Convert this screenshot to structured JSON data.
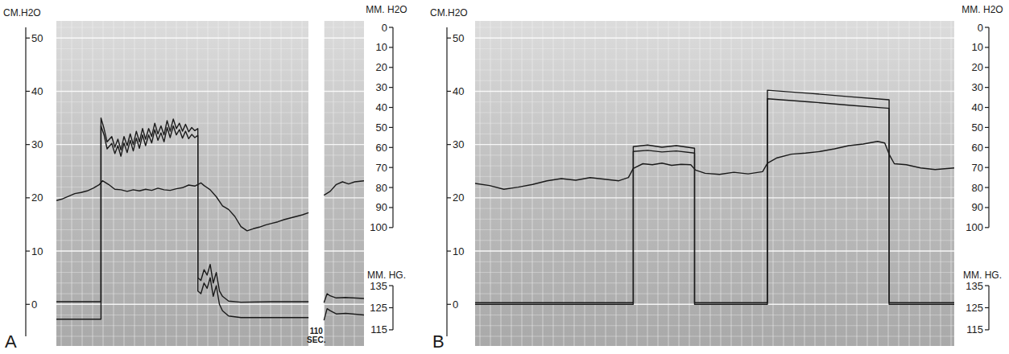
{
  "chart_data": [
    {
      "type": "line",
      "panel": "A",
      "y_label": "CM.H2O",
      "y2_label": "MM. H2O",
      "y3_label": "MM. HG.",
      "xlim": [
        0,
        100
      ],
      "ylim": [
        -6,
        52
      ],
      "yticks": [
        0,
        10,
        20,
        30,
        40,
        50
      ],
      "y2lim": [
        100,
        0
      ],
      "y2ticks": [
        0,
        10,
        20,
        30,
        40,
        50,
        60,
        70,
        80,
        90,
        100
      ],
      "y3lim": [
        115,
        135
      ],
      "y3ticks": [
        115,
        125,
        135
      ],
      "grid": true,
      "tick_labels": "y",
      "color": "#1a1a1a",
      "annotations": [
        {
          "text": "110 SEC.",
          "x": 84.5
        }
      ],
      "series": [
        {
          "x": [
            0,
            2,
            4,
            6,
            8,
            10,
            12,
            14,
            15,
            17,
            19,
            21,
            23,
            25,
            27,
            29,
            31,
            33,
            35,
            37,
            39,
            41,
            43,
            45,
            47,
            48,
            50,
            52,
            54,
            56,
            58,
            60,
            62,
            64,
            66,
            68,
            70,
            72,
            74,
            76,
            78,
            80,
            82,
            84.5,
            87,
            89,
            91,
            93,
            95,
            97,
            100
          ],
          "values": [
            19.5,
            19.8,
            20.3,
            20.8,
            21,
            21.3,
            21.8,
            22.5,
            23.2,
            22.5,
            21.6,
            21.5,
            21.2,
            21.5,
            21.3,
            21.6,
            21.4,
            21.8,
            21.5,
            21.4,
            21.7,
            21.9,
            22.4,
            22.2,
            22.8,
            22.3,
            21.5,
            20.2,
            18.5,
            17.8,
            16.5,
            14.6,
            13.8,
            14.2,
            14.5,
            14.9,
            15.2,
            15.5,
            15.9,
            16.2,
            16.5,
            16.8,
            17.2,
            null,
            20.5,
            21.2,
            22.5,
            23,
            22.6,
            23,
            23.2
          ]
        },
        {
          "x": [
            0,
            14.5,
            14.5,
            15.5,
            16.5,
            18,
            19,
            20,
            21,
            22,
            23,
            24,
            25,
            26,
            27,
            28,
            29,
            30,
            31,
            32,
            33,
            34,
            35,
            36,
            37,
            38,
            39,
            40,
            41,
            42,
            43,
            44,
            45,
            46,
            46,
            47,
            48,
            49,
            50,
            51,
            52,
            53,
            54,
            56,
            60,
            70,
            82,
            84.5,
            87,
            88,
            89,
            91,
            94,
            100
          ],
          "values": [
            0.5,
            0.5,
            35,
            33,
            30.5,
            31.5,
            29.5,
            31,
            29,
            31.5,
            29.8,
            32,
            30,
            32.5,
            30.5,
            33,
            31,
            33,
            31.5,
            34,
            32,
            33.5,
            31.8,
            34.5,
            32.5,
            34.8,
            33,
            34,
            32.5,
            33.8,
            32.4,
            33.2,
            32.6,
            33,
            5,
            4.5,
            6.5,
            5.5,
            7.5,
            4,
            6,
            2.5,
            1.5,
            0.6,
            0.4,
            0.5,
            0.5,
            null,
            0.3,
            2,
            1.6,
            1.2,
            1.3,
            1.1
          ]
        },
        {
          "x": [
            0,
            14.5,
            14.5,
            15.5,
            16.5,
            18,
            19,
            20,
            21,
            22,
            23,
            24,
            25,
            26,
            27,
            28,
            29,
            30,
            31,
            32,
            33,
            34,
            35,
            36,
            37,
            38,
            39,
            40,
            41,
            42,
            43,
            44,
            45,
            46,
            46,
            47,
            48,
            49,
            50,
            51,
            52,
            53,
            54,
            56,
            60,
            70,
            82,
            84.5,
            87,
            88,
            89,
            91,
            94,
            100
          ],
          "values": [
            -2.8,
            -2.8,
            33.5,
            31.8,
            29.2,
            30.2,
            28.3,
            29.8,
            27.8,
            30.3,
            28.5,
            30.8,
            28.8,
            31.2,
            29.3,
            31.8,
            29.8,
            31.8,
            30.3,
            32.8,
            30.8,
            32.2,
            30.5,
            33.2,
            31.3,
            33.5,
            31.8,
            32.8,
            31.2,
            32.5,
            31.1,
            31.9,
            31.3,
            31.7,
            2.5,
            2,
            4,
            3,
            5,
            1.5,
            3.5,
            0,
            -1.2,
            -2.2,
            -2.5,
            -2.5,
            -2.5,
            null,
            -3,
            -0.8,
            -1.2,
            -1.8,
            -1.7,
            -2
          ]
        }
      ]
    },
    {
      "type": "line",
      "panel": "B",
      "y_label": "CM.H2O",
      "y2_label": "MM. H2O",
      "y3_label": "MM. HG.",
      "xlim": [
        0,
        100
      ],
      "ylim": [
        -6,
        52
      ],
      "yticks": [
        0,
        10,
        20,
        30,
        40,
        50
      ],
      "y2lim": [
        100,
        0
      ],
      "y2ticks": [
        0,
        10,
        20,
        30,
        40,
        50,
        60,
        70,
        80,
        90,
        100
      ],
      "y3lim": [
        115,
        135
      ],
      "y3ticks": [
        115,
        125,
        135
      ],
      "grid": true,
      "tick_labels": "y",
      "color": "#1a1a1a",
      "series": [
        {
          "x": [
            0,
            3,
            6,
            9,
            12,
            15,
            18,
            21,
            24,
            27,
            30,
            32,
            33,
            35,
            37,
            39,
            41,
            43,
            45,
            46,
            48,
            51,
            54,
            57,
            60,
            61,
            63,
            66,
            69,
            72,
            75,
            78,
            81,
            84,
            85.5,
            86.5,
            87.5,
            90,
            93,
            96,
            100
          ],
          "values": [
            22.7,
            22.3,
            21.6,
            22,
            22.5,
            23.2,
            23.6,
            23.3,
            23.8,
            23.5,
            23.2,
            23.8,
            25.5,
            26.4,
            26.2,
            26.5,
            26.1,
            26.3,
            26.2,
            25.2,
            24.6,
            24.4,
            24.8,
            24.5,
            24.9,
            26.5,
            27.5,
            28.2,
            28.4,
            28.7,
            29.2,
            29.8,
            30.1,
            30.6,
            30.3,
            28,
            26.4,
            26.2,
            25.6,
            25.3,
            25.6
          ]
        },
        {
          "x": [
            0,
            33,
            33,
            36,
            39,
            42,
            45.8,
            45.8,
            61,
            61,
            70,
            78,
            86.4,
            86.4,
            100
          ],
          "values": [
            0.3,
            0.3,
            29.6,
            29.9,
            29.5,
            29.8,
            29.3,
            0.3,
            0.3,
            40.2,
            39.6,
            39,
            38.4,
            0.3,
            0.3
          ]
        },
        {
          "x": [
            0,
            33,
            33,
            36,
            39,
            42,
            45.8,
            45.8,
            61,
            61,
            70,
            78,
            86.4,
            86.4,
            100
          ],
          "values": [
            0,
            0,
            28.7,
            28.9,
            28.6,
            28.8,
            28.4,
            0,
            0,
            38.6,
            38,
            37.4,
            36.8,
            0,
            0
          ]
        }
      ]
    }
  ]
}
